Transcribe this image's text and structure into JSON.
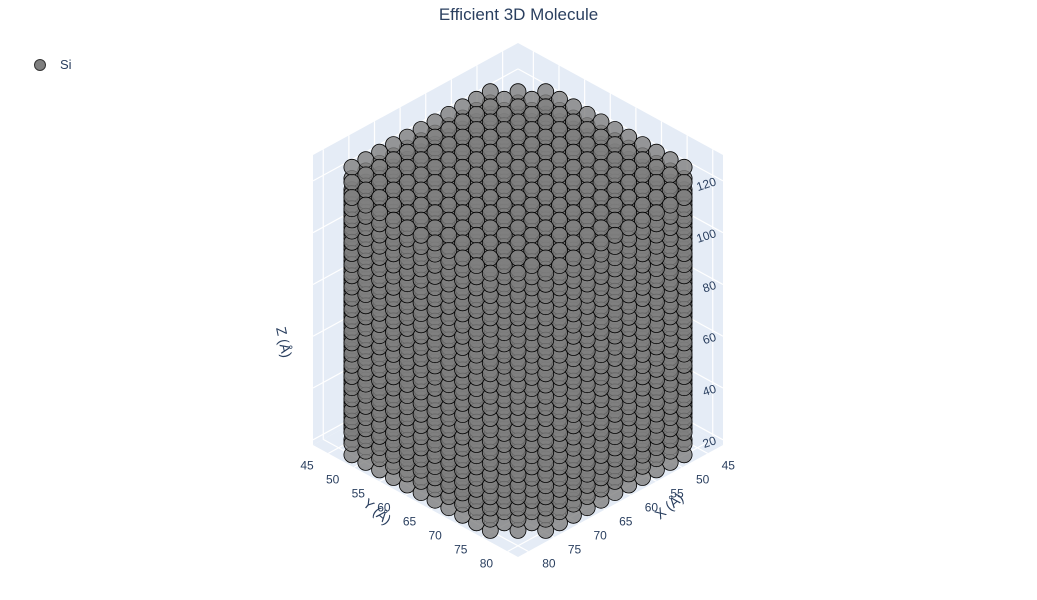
{
  "chart_data": {
    "type": "scatter",
    "title": "Efficient 3D Molecule",
    "legend": {
      "position": "top-left",
      "entries": [
        {
          "name": "Si",
          "color": "#7f7f7f"
        }
      ]
    },
    "series": [
      {
        "name": "Si",
        "color": "#7f7f7f",
        "marker_outline": "#000000",
        "description_of_extent": {
          "x": [
            44,
            82
          ],
          "y": [
            44,
            82
          ],
          "z": [
            22,
            122
          ]
        }
      }
    ],
    "axes": {
      "x": {
        "title": "X (Å)",
        "range": [
          42,
          82
        ],
        "ticks": [
          45,
          50,
          55,
          60,
          65,
          70,
          75,
          80
        ]
      },
      "y": {
        "title": "Y (Å)",
        "range": [
          42,
          82
        ],
        "ticks": [
          45,
          50,
          55,
          60,
          65,
          70,
          75,
          80
        ]
      },
      "z": {
        "title": "Z (Å)",
        "range": [
          18,
          130
        ],
        "ticks": [
          20,
          40,
          60,
          80,
          100,
          120
        ]
      }
    },
    "grid": true,
    "background_color": "#e5ecf6"
  }
}
